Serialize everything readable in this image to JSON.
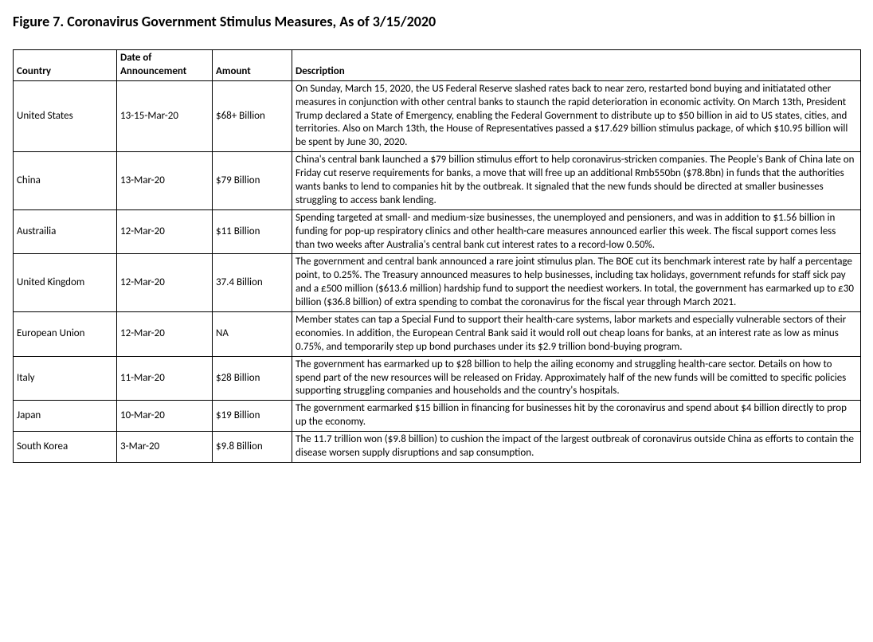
{
  "title": "Figure 7. Coronavirus Government Stimulus Measures, As of 3/15/2020",
  "table": {
    "headers": {
      "country": "Country",
      "date": "Date of Announcement",
      "amount": "Amount",
      "description": "Description"
    },
    "rows": [
      {
        "country": "United States",
        "date": "13-15-Mar-20",
        "amount": "$68+ Billion",
        "description": "On Sunday, March 15, 2020, the US Federal Reserve slashed rates back to near zero, restarted bond buying and initiatated other measures in conjunction with other  central banks to staunch the rapid deterioration in economic activity. On March 13th, President Trump declared a State of Emergency, enabling the Federal Government to distribute up to $50 billion in aid to US states, cities, and territories. Also on March 13th, the House of Representatives passed a $17.629 billion stimulus package, of which $10.95 billion will be spent by June 30, 2020."
      },
      {
        "country": "China",
        "date": "13-Mar-20",
        "amount": "$79 Billion",
        "description": "China's central bank launched a $79 billion stimulus effort to help coronavirus-stricken companies. The People's Bank of China late on Friday cut reserve requirements for banks, a move that will free up an additional Rmb550bn ($78.8bn) in funds that the authorities wants banks to lend to companies hit by the outbreak. It signaled that the new funds should be directed at smaller businesses struggling to  access bank lending."
      },
      {
        "country": "Austrailia",
        "date": "12-Mar-20",
        "amount": "$11 Billion",
        "description": "Spending targeted at small- and medium-size businesses, the unemployed and pensioners, and was in addition to $1.56 billion in funding for pop-up respiratory clinics and other health-care measures announced earlier this week. The fiscal support comes less than two weeks after Australia's central bank cut interest rates to a record-low 0.50%."
      },
      {
        "country": "United Kingdom",
        "date": "12-Mar-20",
        "amount": "37.4 Billion",
        "description": "The government and central bank announced a rare joint stimulus plan. The BOE cut its benchmark interest rate by half a percentage point, to 0.25%. The Treasury announced measures to help businesses, including tax holidays, government refunds for staff sick pay and a £500 million ($613.6 million) hardship fund to support the neediest workers. In total, the government has earmarked up to £30 billion ($36.8 billion) of extra spending to combat the coronavirus for the fiscal year through March 2021."
      },
      {
        "country": "European Union",
        "date": "12-Mar-20",
        "amount": "NA",
        "description": "Member states can tap a Special Fund to support their health-care systems, labor markets and especially vulnerable sectors of their economies. In addition, the European Central Bank said it would roll out cheap loans for banks, at an interest rate as low as minus 0.75%, and temporarily step up bond purchases under its $2.9 trillion bond-buying program."
      },
      {
        "country": "Italy",
        "date": "11-Mar-20",
        "amount": "$28 Billion",
        "description": "The government has earmarked up to $28 billion to help the ailing economy and struggling health-care sector. Details on how to spend part of the new resources will be released on Friday. Approximately half of the new funds will be comitted to specific policies supporting struggling companies and households and the country's hospitals."
      },
      {
        "country": "Japan",
        "date": "10-Mar-20",
        "amount": "$19 Billion",
        "description": "The government earmarked $15 billion in financing for businesses hit by the  coronavirus and spend about $4 billion directly to prop up the economy."
      },
      {
        "country": "South Korea",
        "date": "3-Mar-20",
        "amount": "$9.8 Billion",
        "description": "The 11.7 trillion won ($9.8 billion) to cushion the impact of the largest outbreak of coronavirus outside China as efforts to contain the disease worsen supply disruptions and sap consumption."
      }
    ]
  }
}
